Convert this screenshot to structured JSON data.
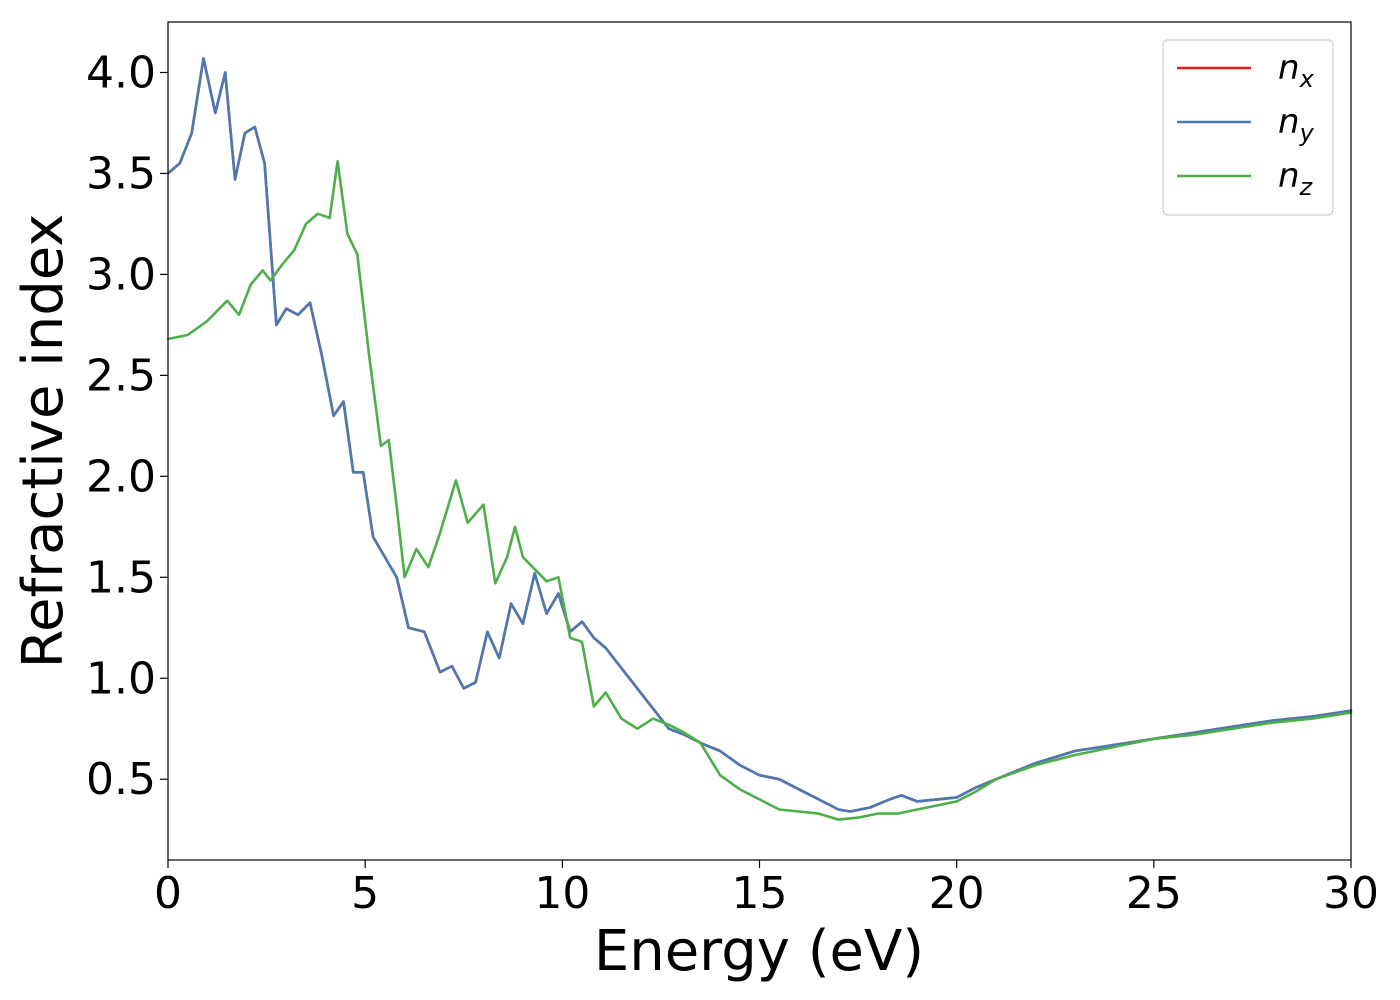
{
  "chart_data": {
    "type": "line",
    "title": "",
    "xlabel": "Energy (eV)",
    "ylabel": "Refractive index",
    "xlim": [
      0,
      30
    ],
    "ylim": [
      0.1,
      4.25
    ],
    "xticks": [
      0,
      5,
      10,
      15,
      20,
      25,
      30
    ],
    "xtick_labels": [
      "0",
      "5",
      "10",
      "15",
      "20",
      "25",
      "30"
    ],
    "yticks": [
      0.5,
      1.0,
      1.5,
      2.0,
      2.5,
      3.0,
      3.5,
      4.0
    ],
    "ytick_labels": [
      "0.5",
      "1.0",
      "1.5",
      "2.0",
      "2.5",
      "3.0",
      "3.5",
      "4.0"
    ],
    "grid": false,
    "legend_position": "top-right",
    "series": [
      {
        "name": "n",
        "subscript": "x",
        "color": "#e41a1c",
        "x": [
          0,
          0.3,
          0.6,
          0.9,
          1.2,
          1.45,
          1.7,
          1.95,
          2.2,
          2.45,
          2.75,
          3.0,
          3.3,
          3.6,
          3.9,
          4.2,
          4.45,
          4.7,
          4.95,
          5.2,
          5.5,
          5.8,
          6.1,
          6.5,
          6.9,
          7.2,
          7.5,
          7.8,
          8.1,
          8.4,
          8.7,
          9.0,
          9.3,
          9.6,
          9.9,
          10.2,
          10.5,
          10.8,
          11.1,
          11.5,
          11.9,
          12.3,
          12.7,
          13.1,
          13.5,
          14.0,
          14.5,
          15.0,
          15.5,
          16.0,
          16.5,
          17.0,
          17.3,
          17.8,
          18.3,
          18.6,
          19.0,
          19.5,
          20.0,
          20.5,
          21.0,
          22.0,
          23.0,
          24.0,
          25.0,
          26.0,
          27.0,
          28.0,
          29.0,
          30.0
        ],
        "y": [
          3.5,
          3.55,
          3.7,
          4.07,
          3.8,
          4.0,
          3.47,
          3.7,
          3.73,
          3.55,
          2.75,
          2.83,
          2.8,
          2.86,
          2.6,
          2.3,
          2.37,
          2.02,
          2.02,
          1.7,
          1.6,
          1.5,
          1.25,
          1.23,
          1.03,
          1.06,
          0.95,
          0.98,
          1.23,
          1.1,
          1.37,
          1.27,
          1.52,
          1.32,
          1.42,
          1.23,
          1.28,
          1.2,
          1.15,
          1.05,
          0.95,
          0.85,
          0.75,
          0.72,
          0.68,
          0.64,
          0.57,
          0.52,
          0.5,
          0.45,
          0.4,
          0.35,
          0.34,
          0.36,
          0.4,
          0.42,
          0.39,
          0.4,
          0.41,
          0.46,
          0.5,
          0.58,
          0.64,
          0.67,
          0.7,
          0.73,
          0.76,
          0.79,
          0.81,
          0.84
        ]
      },
      {
        "name": "n",
        "subscript": "y",
        "color": "#4a7ab3",
        "x": [
          0,
          0.3,
          0.6,
          0.9,
          1.2,
          1.45,
          1.7,
          1.95,
          2.2,
          2.45,
          2.75,
          3.0,
          3.3,
          3.6,
          3.9,
          4.2,
          4.45,
          4.7,
          4.95,
          5.2,
          5.5,
          5.8,
          6.1,
          6.5,
          6.9,
          7.2,
          7.5,
          7.8,
          8.1,
          8.4,
          8.7,
          9.0,
          9.3,
          9.6,
          9.9,
          10.2,
          10.5,
          10.8,
          11.1,
          11.5,
          11.9,
          12.3,
          12.7,
          13.1,
          13.5,
          14.0,
          14.5,
          15.0,
          15.5,
          16.0,
          16.5,
          17.0,
          17.3,
          17.8,
          18.3,
          18.6,
          19.0,
          19.5,
          20.0,
          20.5,
          21.0,
          22.0,
          23.0,
          24.0,
          25.0,
          26.0,
          27.0,
          28.0,
          29.0,
          30.0
        ],
        "y": [
          3.5,
          3.55,
          3.7,
          4.07,
          3.8,
          4.0,
          3.47,
          3.7,
          3.73,
          3.55,
          2.75,
          2.83,
          2.8,
          2.86,
          2.6,
          2.3,
          2.37,
          2.02,
          2.02,
          1.7,
          1.6,
          1.5,
          1.25,
          1.23,
          1.03,
          1.06,
          0.95,
          0.98,
          1.23,
          1.1,
          1.37,
          1.27,
          1.52,
          1.32,
          1.42,
          1.23,
          1.28,
          1.2,
          1.15,
          1.05,
          0.95,
          0.85,
          0.75,
          0.72,
          0.68,
          0.64,
          0.57,
          0.52,
          0.5,
          0.45,
          0.4,
          0.35,
          0.34,
          0.36,
          0.4,
          0.42,
          0.39,
          0.4,
          0.41,
          0.46,
          0.5,
          0.58,
          0.64,
          0.67,
          0.7,
          0.73,
          0.76,
          0.79,
          0.81,
          0.84
        ]
      },
      {
        "name": "n",
        "subscript": "z",
        "color": "#4daf4a",
        "x": [
          0,
          0.5,
          1.0,
          1.5,
          1.8,
          2.1,
          2.4,
          2.6,
          2.9,
          3.2,
          3.5,
          3.8,
          4.1,
          4.3,
          4.55,
          4.8,
          5.1,
          5.4,
          5.6,
          5.8,
          6.0,
          6.3,
          6.6,
          6.9,
          7.3,
          7.6,
          8.0,
          8.3,
          8.6,
          8.8,
          9.0,
          9.3,
          9.6,
          9.9,
          10.2,
          10.5,
          10.8,
          11.1,
          11.5,
          11.9,
          12.3,
          12.7,
          13.1,
          13.5,
          14.0,
          14.5,
          15.0,
          15.5,
          16.0,
          16.5,
          17.0,
          17.5,
          18.0,
          18.5,
          19.0,
          19.5,
          20.0,
          20.5,
          21.0,
          22.0,
          23.0,
          24.0,
          25.0,
          26.0,
          27.0,
          28.0,
          29.0,
          30.0
        ],
        "y": [
          2.68,
          2.7,
          2.77,
          2.87,
          2.8,
          2.95,
          3.02,
          2.97,
          3.05,
          3.12,
          3.25,
          3.3,
          3.28,
          3.56,
          3.2,
          3.1,
          2.6,
          2.15,
          2.18,
          1.85,
          1.5,
          1.64,
          1.55,
          1.72,
          1.98,
          1.77,
          1.86,
          1.47,
          1.6,
          1.75,
          1.6,
          1.54,
          1.48,
          1.5,
          1.2,
          1.18,
          0.86,
          0.93,
          0.8,
          0.75,
          0.8,
          0.77,
          0.73,
          0.68,
          0.52,
          0.45,
          0.4,
          0.35,
          0.34,
          0.33,
          0.3,
          0.31,
          0.33,
          0.33,
          0.35,
          0.37,
          0.39,
          0.44,
          0.5,
          0.57,
          0.62,
          0.66,
          0.7,
          0.72,
          0.75,
          0.78,
          0.8,
          0.83
        ]
      }
    ]
  }
}
